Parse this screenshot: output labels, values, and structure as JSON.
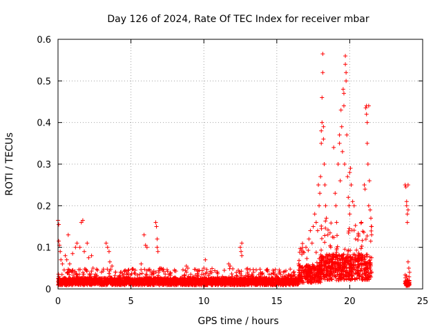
{
  "chart_data": {
    "type": "scatter",
    "title": "Day 126 of 2024, Rate Of TEC Index for receiver mbar",
    "xlabel": "GPS time / hours",
    "ylabel": "ROTI / TECUs",
    "xlim": [
      0,
      25
    ],
    "ylim": [
      0,
      0.6
    ],
    "x_ticks": [
      0,
      5,
      10,
      15,
      20,
      25
    ],
    "y_ticks": [
      0,
      0.1,
      0.2,
      0.3,
      0.4,
      0.5,
      0.6
    ],
    "x_tick_labels": [
      "0",
      "5",
      "10",
      "15",
      "20",
      "25"
    ],
    "y_tick_labels": [
      "0",
      "0.1",
      "0.2",
      "0.3",
      "0.4",
      "0.5",
      "0.6"
    ],
    "grid": true,
    "marker": "+",
    "color": "#ff0000",
    "series": [
      {
        "name": "ROTI",
        "points": [
          [
            0.0,
            0.165
          ],
          [
            0.05,
            0.155
          ],
          [
            0.05,
            0.115
          ],
          [
            0.1,
            0.105
          ],
          [
            0.15,
            0.09
          ],
          [
            0.2,
            0.07
          ],
          [
            0.3,
            0.06
          ],
          [
            0.5,
            0.08
          ],
          [
            0.6,
            0.07
          ],
          [
            0.7,
            0.13
          ],
          [
            0.8,
            0.06
          ],
          [
            1.0,
            0.085
          ],
          [
            1.2,
            0.1
          ],
          [
            1.3,
            0.11
          ],
          [
            1.5,
            0.1
          ],
          [
            1.6,
            0.16
          ],
          [
            1.7,
            0.165
          ],
          [
            1.8,
            0.09
          ],
          [
            2.0,
            0.11
          ],
          [
            2.1,
            0.075
          ],
          [
            2.3,
            0.08
          ],
          [
            2.4,
            0.05
          ],
          [
            3.3,
            0.11
          ],
          [
            3.4,
            0.1
          ],
          [
            3.5,
            0.09
          ],
          [
            3.55,
            0.065
          ],
          [
            3.7,
            0.055
          ],
          [
            4.3,
            0.04
          ],
          [
            4.6,
            0.045
          ],
          [
            5.3,
            0.045
          ],
          [
            5.7,
            0.06
          ],
          [
            5.9,
            0.13
          ],
          [
            6.0,
            0.105
          ],
          [
            6.1,
            0.1
          ],
          [
            6.7,
            0.16
          ],
          [
            6.75,
            0.15
          ],
          [
            6.8,
            0.12
          ],
          [
            6.8,
            0.1
          ],
          [
            6.85,
            0.09
          ],
          [
            7.0,
            0.05
          ],
          [
            8.8,
            0.055
          ],
          [
            8.9,
            0.05
          ],
          [
            9.1,
            0.035
          ],
          [
            9.6,
            0.045
          ],
          [
            10.0,
            0.05
          ],
          [
            10.1,
            0.07
          ],
          [
            10.2,
            0.04
          ],
          [
            10.9,
            0.04
          ],
          [
            11.7,
            0.06
          ],
          [
            11.8,
            0.055
          ],
          [
            12.5,
            0.1
          ],
          [
            12.55,
            0.09
          ],
          [
            12.6,
            0.11
          ],
          [
            12.6,
            0.08
          ],
          [
            13.0,
            0.04
          ],
          [
            14.0,
            0.035
          ],
          [
            14.8,
            0.04
          ],
          [
            15.5,
            0.03
          ],
          [
            16.0,
            0.035
          ],
          [
            16.5,
            0.06
          ],
          [
            16.8,
            0.09
          ],
          [
            17.0,
            0.1
          ],
          [
            17.2,
            0.12
          ],
          [
            17.3,
            0.14
          ],
          [
            17.5,
            0.15
          ],
          [
            17.6,
            0.18
          ],
          [
            17.7,
            0.16
          ],
          [
            17.8,
            0.14
          ],
          [
            17.85,
            0.25
          ],
          [
            17.9,
            0.2
          ],
          [
            17.95,
            0.23
          ],
          [
            18.0,
            0.27
          ],
          [
            18.05,
            0.35
          ],
          [
            18.05,
            0.38
          ],
          [
            18.1,
            0.4
          ],
          [
            18.1,
            0.46
          ],
          [
            18.15,
            0.52
          ],
          [
            18.15,
            0.565
          ],
          [
            18.2,
            0.39
          ],
          [
            18.2,
            0.36
          ],
          [
            18.25,
            0.3
          ],
          [
            18.3,
            0.25
          ],
          [
            18.35,
            0.2
          ],
          [
            18.4,
            0.17
          ],
          [
            18.5,
            0.13
          ],
          [
            18.7,
            0.1
          ],
          [
            18.9,
            0.34
          ],
          [
            19.0,
            0.23
          ],
          [
            19.05,
            0.2
          ],
          [
            19.1,
            0.16
          ],
          [
            19.2,
            0.3
          ],
          [
            19.3,
            0.35
          ],
          [
            19.3,
            0.37
          ],
          [
            19.35,
            0.26
          ],
          [
            19.4,
            0.43
          ],
          [
            19.45,
            0.39
          ],
          [
            19.5,
            0.33
          ],
          [
            19.55,
            0.48
          ],
          [
            19.6,
            0.47
          ],
          [
            19.6,
            0.44
          ],
          [
            19.65,
            0.3
          ],
          [
            19.7,
            0.56
          ],
          [
            19.7,
            0.54
          ],
          [
            19.75,
            0.52
          ],
          [
            19.75,
            0.5
          ],
          [
            19.8,
            0.37
          ],
          [
            19.85,
            0.27
          ],
          [
            19.9,
            0.22
          ],
          [
            19.95,
            0.2
          ],
          [
            20.0,
            0.18
          ],
          [
            20.0,
            0.28
          ],
          [
            20.05,
            0.29
          ],
          [
            20.1,
            0.25
          ],
          [
            20.2,
            0.21
          ],
          [
            20.3,
            0.2
          ],
          [
            20.4,
            0.12
          ],
          [
            20.6,
            0.13
          ],
          [
            20.8,
            0.16
          ],
          [
            20.9,
            0.08
          ],
          [
            21.0,
            0.25
          ],
          [
            21.05,
            0.24
          ],
          [
            21.1,
            0.435
          ],
          [
            21.15,
            0.44
          ],
          [
            21.15,
            0.42
          ],
          [
            21.2,
            0.4
          ],
          [
            21.2,
            0.35
          ],
          [
            21.25,
            0.3
          ],
          [
            21.3,
            0.44
          ],
          [
            21.3,
            0.2
          ],
          [
            21.35,
            0.26
          ],
          [
            21.4,
            0.19
          ],
          [
            21.45,
            0.17
          ],
          [
            21.5,
            0.13
          ],
          [
            21.5,
            0.15
          ],
          [
            23.8,
            0.25
          ],
          [
            23.85,
            0.245
          ],
          [
            23.9,
            0.21
          ],
          [
            23.9,
            0.2
          ],
          [
            23.95,
            0.18
          ],
          [
            23.95,
            0.16
          ],
          [
            24.0,
            0.25
          ],
          [
            24.0,
            0.19
          ],
          [
            24.0,
            0.065
          ],
          [
            24.05,
            0.05
          ],
          [
            24.1,
            0.04
          ]
        ]
      }
    ]
  }
}
